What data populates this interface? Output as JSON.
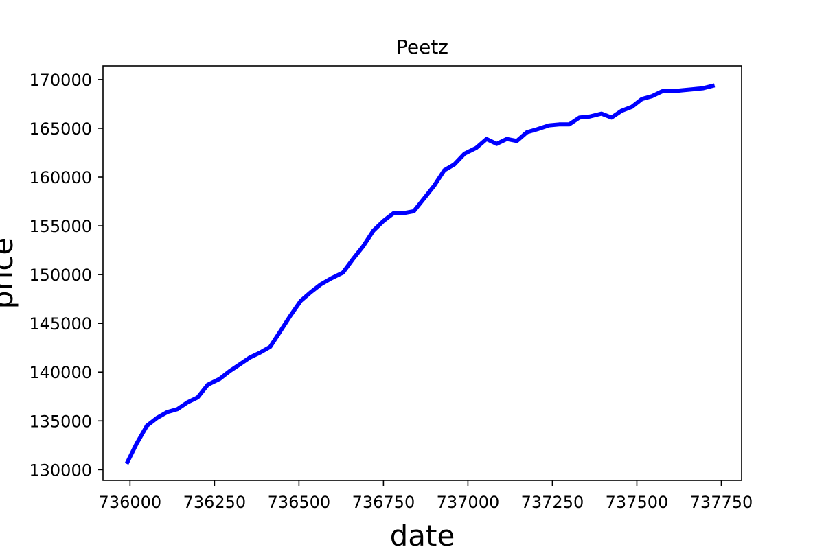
{
  "chart_data": {
    "type": "line",
    "title": "Peetz",
    "xlabel": "date",
    "ylabel": "price",
    "xlim": [
      735920,
      737810
    ],
    "ylim": [
      128900,
      171400
    ],
    "grid": false,
    "xticks": [
      736000,
      736250,
      736500,
      736750,
      737000,
      737250,
      737500,
      737750
    ],
    "xtick_labels": [
      "736000",
      "736250",
      "736500",
      "736750",
      "737000",
      "737250",
      "737500",
      "737750"
    ],
    "yticks": [
      130000,
      135000,
      140000,
      145000,
      150000,
      155000,
      160000,
      165000,
      170000
    ],
    "ytick_labels": [
      "130000",
      "135000",
      "140000",
      "145000",
      "150000",
      "155000",
      "160000",
      "165000",
      "170000"
    ],
    "series": [
      {
        "color": "#0000ff",
        "x": [
          735990,
          736020,
          736050,
          736080,
          736110,
          736140,
          736170,
          736200,
          736230,
          736265,
          736295,
          736325,
          736355,
          736385,
          736415,
          736445,
          736475,
          736505,
          736535,
          736565,
          736595,
          736630,
          736660,
          736690,
          736720,
          736750,
          736780,
          736810,
          736840,
          736870,
          736900,
          736930,
          736960,
          736990,
          737025,
          737055,
          737085,
          737115,
          737145,
          737175,
          737205,
          737240,
          737270,
          737300,
          737330,
          737360,
          737395,
          737425,
          737455,
          737485,
          737515,
          737545,
          737575,
          737605,
          737635,
          737665,
          737695,
          737730
        ],
        "y": [
          130600,
          132700,
          134500,
          135300,
          135900,
          136200,
          136900,
          137400,
          138700,
          139300,
          140100,
          140800,
          141500,
          142000,
          142600,
          144200,
          145800,
          147300,
          148200,
          149000,
          149600,
          150200,
          151600,
          152900,
          154500,
          155500,
          156300,
          156300,
          156500,
          157800,
          159100,
          160700,
          161300,
          162400,
          163000,
          163900,
          163400,
          163900,
          163700,
          164600,
          164900,
          165300,
          165400,
          165400,
          166100,
          166200,
          166500,
          166100,
          166800,
          167200,
          168000,
          168300,
          168800,
          168800,
          168900,
          169000,
          169100,
          169400
        ]
      }
    ]
  }
}
